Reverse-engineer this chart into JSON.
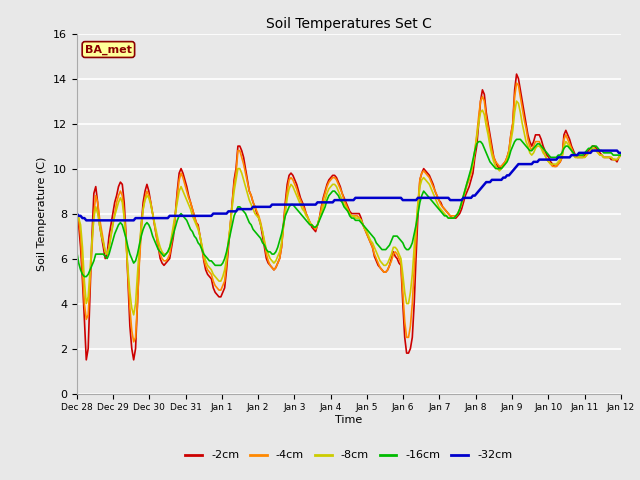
{
  "title": "Soil Temperatures Set C",
  "xlabel": "Time",
  "ylabel": "Soil Temperature (C)",
  "ylim": [
    0,
    16
  ],
  "yticks": [
    0,
    2,
    4,
    6,
    8,
    10,
    12,
    14,
    16
  ],
  "background_color": "#e8e8e8",
  "annotation_text": "BA_met",
  "annotation_bg": "#ffff99",
  "annotation_border": "#8B0000",
  "series": {
    "-2cm": {
      "color": "#cc0000",
      "lw": 1.2
    },
    "-4cm": {
      "color": "#ff8800",
      "lw": 1.2
    },
    "-8cm": {
      "color": "#cccc00",
      "lw": 1.2
    },
    "-16cm": {
      "color": "#00bb00",
      "lw": 1.2
    },
    "-32cm": {
      "color": "#0000cc",
      "lw": 1.8
    }
  },
  "x_labels": [
    "Dec 28",
    "Dec 29",
    "Dec 30",
    "Dec 31",
    "Jan 1",
    "Jan 2",
    "Jan 3",
    "Jan 4",
    "Jan 5",
    "Jan 6",
    "Jan 7",
    "Jan 8",
    "Jan 9",
    "Jan 10",
    "Jan 11",
    "Jan 12"
  ],
  "data": {
    "-2cm": [
      8.0,
      7.5,
      6.5,
      5.0,
      3.3,
      1.5,
      2.0,
      4.5,
      7.0,
      8.9,
      9.2,
      8.5,
      7.5,
      7.0,
      6.5,
      6.0,
      6.2,
      7.0,
      7.5,
      8.0,
      8.5,
      8.8,
      9.2,
      9.4,
      9.3,
      8.5,
      7.0,
      5.0,
      3.0,
      2.0,
      1.5,
      2.0,
      4.0,
      6.0,
      7.5,
      8.5,
      9.0,
      9.3,
      9.0,
      8.5,
      8.0,
      7.5,
      7.0,
      6.5,
      6.0,
      5.8,
      5.7,
      5.8,
      5.9,
      6.0,
      6.5,
      7.0,
      8.0,
      9.0,
      9.8,
      10.0,
      9.8,
      9.5,
      9.2,
      8.8,
      8.5,
      8.2,
      7.9,
      7.6,
      7.5,
      7.0,
      6.5,
      5.9,
      5.5,
      5.3,
      5.2,
      5.1,
      4.7,
      4.5,
      4.4,
      4.3,
      4.3,
      4.5,
      4.7,
      5.5,
      6.5,
      7.5,
      8.5,
      9.5,
      10.0,
      11.0,
      11.0,
      10.8,
      10.5,
      10.0,
      9.5,
      9.0,
      8.8,
      8.5,
      8.3,
      8.0,
      7.8,
      7.5,
      7.0,
      6.5,
      6.0,
      5.8,
      5.7,
      5.6,
      5.5,
      5.6,
      5.8,
      6.0,
      6.5,
      7.5,
      8.5,
      9.3,
      9.7,
      9.8,
      9.7,
      9.5,
      9.3,
      9.0,
      8.7,
      8.5,
      8.3,
      8.0,
      7.8,
      7.6,
      7.4,
      7.3,
      7.2,
      7.5,
      7.8,
      8.3,
      8.7,
      9.0,
      9.3,
      9.5,
      9.6,
      9.7,
      9.7,
      9.6,
      9.4,
      9.2,
      8.9,
      8.7,
      8.5,
      8.3,
      8.1,
      8.0,
      8.0,
      8.0,
      8.0,
      8.0,
      7.8,
      7.5,
      7.3,
      7.1,
      6.9,
      6.7,
      6.5,
      6.1,
      5.9,
      5.7,
      5.6,
      5.5,
      5.4,
      5.4,
      5.5,
      5.7,
      6.0,
      6.3,
      6.1,
      6.0,
      5.8,
      5.7,
      4.0,
      2.5,
      1.8,
      1.8,
      2.0,
      2.5,
      4.0,
      6.1,
      8.0,
      9.5,
      9.8,
      10.0,
      9.9,
      9.8,
      9.7,
      9.5,
      9.3,
      9.0,
      8.8,
      8.6,
      8.5,
      8.3,
      8.2,
      8.1,
      8.0,
      7.9,
      7.8,
      7.8,
      7.8,
      7.9,
      8.0,
      8.2,
      8.5,
      8.8,
      9.0,
      9.2,
      9.5,
      9.8,
      10.5,
      11.0,
      12.0,
      13.0,
      13.5,
      13.3,
      12.5,
      12.0,
      11.5,
      11.0,
      10.5,
      10.3,
      10.1,
      10.0,
      10.1,
      10.2,
      10.3,
      10.5,
      10.8,
      11.5,
      12.0,
      13.5,
      14.2,
      14.0,
      13.5,
      13.0,
      12.5,
      12.0,
      11.5,
      11.2,
      11.0,
      11.2,
      11.5,
      11.5,
      11.5,
      11.3,
      11.0,
      10.8,
      10.6,
      10.5,
      10.3,
      10.2,
      10.1,
      10.1,
      10.2,
      10.3,
      10.5,
      11.5,
      11.7,
      11.5,
      11.3,
      11.0,
      10.8,
      10.6,
      10.5,
      10.5,
      10.5,
      10.5,
      10.6,
      10.7,
      10.8,
      10.9,
      11.0,
      11.0,
      10.9,
      10.8,
      10.7,
      10.6,
      10.5,
      10.5,
      10.5,
      10.5,
      10.4,
      10.4,
      10.4,
      10.3,
      10.5,
      10.6
    ],
    "-4cm": [
      8.0,
      7.8,
      7.0,
      5.5,
      4.0,
      3.3,
      3.5,
      5.0,
      6.5,
      8.0,
      8.8,
      8.5,
      7.8,
      7.3,
      6.8,
      6.3,
      6.2,
      6.5,
      7.0,
      7.5,
      8.0,
      8.5,
      8.8,
      9.0,
      8.8,
      8.0,
      6.8,
      5.2,
      3.8,
      2.8,
      2.3,
      2.5,
      4.0,
      5.8,
      7.2,
      8.2,
      8.7,
      9.0,
      8.8,
      8.5,
      8.0,
      7.5,
      7.0,
      6.5,
      6.2,
      6.0,
      5.9,
      5.9,
      6.0,
      6.2,
      6.7,
      7.2,
      8.0,
      8.8,
      9.5,
      9.8,
      9.6,
      9.3,
      9.0,
      8.7,
      8.5,
      8.2,
      7.9,
      7.6,
      7.4,
      7.0,
      6.5,
      6.0,
      5.7,
      5.5,
      5.4,
      5.3,
      5.0,
      4.8,
      4.7,
      4.6,
      4.6,
      4.8,
      5.0,
      5.8,
      6.7,
      7.5,
      8.5,
      9.3,
      9.8,
      10.8,
      10.8,
      10.5,
      10.2,
      9.8,
      9.4,
      9.0,
      8.8,
      8.5,
      8.3,
      8.1,
      7.9,
      7.6,
      7.2,
      6.7,
      6.2,
      5.9,
      5.7,
      5.6,
      5.5,
      5.6,
      5.8,
      6.0,
      6.5,
      7.4,
      8.3,
      9.0,
      9.5,
      9.6,
      9.5,
      9.3,
      9.1,
      8.8,
      8.6,
      8.4,
      8.2,
      8.0,
      7.8,
      7.6,
      7.5,
      7.4,
      7.3,
      7.5,
      7.8,
      8.2,
      8.6,
      8.9,
      9.2,
      9.4,
      9.5,
      9.6,
      9.6,
      9.5,
      9.3,
      9.1,
      8.9,
      8.6,
      8.4,
      8.2,
      8.0,
      7.9,
      7.9,
      7.9,
      7.9,
      7.8,
      7.7,
      7.5,
      7.3,
      7.1,
      6.9,
      6.7,
      6.5,
      6.2,
      6.0,
      5.8,
      5.6,
      5.5,
      5.4,
      5.4,
      5.5,
      5.7,
      5.9,
      6.2,
      6.3,
      6.2,
      6.0,
      5.8,
      4.5,
      3.2,
      2.5,
      2.5,
      3.0,
      4.0,
      5.5,
      7.0,
      8.5,
      9.5,
      9.8,
      9.9,
      9.8,
      9.7,
      9.6,
      9.4,
      9.2,
      9.0,
      8.8,
      8.6,
      8.4,
      8.3,
      8.2,
      8.1,
      8.0,
      7.9,
      7.9,
      7.9,
      7.9,
      8.0,
      8.2,
      8.4,
      8.7,
      9.0,
      9.3,
      9.5,
      9.8,
      10.2,
      10.8,
      11.5,
      12.3,
      13.0,
      13.2,
      13.0,
      12.3,
      11.8,
      11.3,
      10.8,
      10.5,
      10.3,
      10.2,
      10.1,
      10.1,
      10.2,
      10.3,
      10.5,
      10.8,
      11.5,
      12.0,
      13.2,
      13.8,
      13.7,
      13.2,
      12.7,
      12.2,
      11.8,
      11.3,
      11.0,
      10.8,
      11.0,
      11.2,
      11.2,
      11.2,
      11.0,
      10.8,
      10.6,
      10.4,
      10.3,
      10.2,
      10.1,
      10.1,
      10.1,
      10.2,
      10.3,
      10.5,
      11.3,
      11.5,
      11.3,
      11.1,
      10.9,
      10.7,
      10.5,
      10.5,
      10.5,
      10.5,
      10.5,
      10.5,
      10.6,
      10.7,
      10.8,
      10.9,
      10.9,
      10.8,
      10.7,
      10.6,
      10.6,
      10.5,
      10.5,
      10.5,
      10.5,
      10.5,
      10.4,
      10.4,
      10.4,
      10.5,
      10.6
    ],
    "-8cm": [
      8.0,
      7.8,
      7.5,
      6.5,
      5.0,
      4.0,
      4.3,
      5.5,
      6.8,
      7.8,
      8.3,
      8.0,
      7.5,
      7.0,
      6.7,
      6.3,
      6.2,
      6.5,
      7.0,
      7.5,
      7.9,
      8.2,
      8.5,
      8.7,
      8.5,
      7.8,
      6.8,
      5.5,
      4.5,
      3.8,
      3.5,
      4.0,
      5.3,
      6.5,
      7.5,
      8.2,
      8.6,
      8.8,
      8.7,
      8.4,
      8.0,
      7.6,
      7.2,
      6.8,
      6.5,
      6.3,
      6.2,
      6.2,
      6.3,
      6.5,
      7.0,
      7.5,
      8.0,
      8.5,
      9.0,
      9.2,
      9.0,
      8.8,
      8.6,
      8.4,
      8.2,
      7.9,
      7.7,
      7.5,
      7.3,
      7.0,
      6.6,
      6.2,
      5.9,
      5.7,
      5.6,
      5.5,
      5.3,
      5.2,
      5.1,
      5.0,
      5.0,
      5.2,
      5.5,
      6.0,
      6.8,
      7.5,
      8.3,
      9.0,
      9.5,
      10.0,
      10.0,
      9.8,
      9.5,
      9.2,
      8.9,
      8.6,
      8.4,
      8.2,
      8.0,
      7.9,
      7.8,
      7.5,
      7.2,
      6.8,
      6.4,
      6.2,
      6.0,
      5.9,
      5.8,
      5.9,
      6.1,
      6.3,
      6.7,
      7.4,
      8.0,
      8.7,
      9.1,
      9.3,
      9.2,
      9.0,
      8.8,
      8.6,
      8.4,
      8.2,
      8.1,
      7.9,
      7.8,
      7.6,
      7.5,
      7.4,
      7.4,
      7.5,
      7.8,
      8.0,
      8.3,
      8.6,
      8.9,
      9.1,
      9.2,
      9.3,
      9.3,
      9.2,
      9.0,
      8.8,
      8.6,
      8.4,
      8.3,
      8.1,
      8.0,
      7.9,
      7.9,
      7.8,
      7.8,
      7.8,
      7.7,
      7.5,
      7.3,
      7.2,
      7.0,
      6.8,
      6.7,
      6.5,
      6.3,
      6.1,
      5.9,
      5.8,
      5.7,
      5.7,
      5.8,
      6.0,
      6.2,
      6.5,
      6.5,
      6.4,
      6.2,
      6.0,
      5.3,
      4.5,
      4.0,
      4.0,
      4.5,
      5.3,
      6.5,
      7.5,
      8.5,
      9.2,
      9.5,
      9.6,
      9.5,
      9.4,
      9.3,
      9.1,
      8.9,
      8.7,
      8.5,
      8.3,
      8.2,
      8.1,
      8.0,
      7.9,
      7.8,
      7.8,
      7.8,
      7.8,
      7.9,
      8.0,
      8.2,
      8.5,
      8.8,
      9.1,
      9.4,
      9.6,
      9.9,
      10.2,
      10.8,
      11.4,
      12.0,
      12.5,
      12.6,
      12.4,
      11.9,
      11.5,
      11.0,
      10.6,
      10.3,
      10.1,
      10.0,
      9.9,
      10.0,
      10.1,
      10.2,
      10.4,
      10.7,
      11.2,
      11.7,
      12.5,
      13.0,
      12.9,
      12.5,
      12.0,
      11.6,
      11.2,
      11.0,
      10.7,
      10.6,
      10.7,
      10.9,
      11.0,
      11.0,
      10.9,
      10.7,
      10.6,
      10.4,
      10.3,
      10.2,
      10.2,
      10.2,
      10.2,
      10.3,
      10.4,
      10.5,
      11.0,
      11.2,
      11.1,
      11.0,
      10.8,
      10.6,
      10.5,
      10.5,
      10.5,
      10.5,
      10.5,
      10.5,
      10.6,
      10.7,
      10.8,
      10.9,
      10.9,
      10.8,
      10.7,
      10.6,
      10.6,
      10.5,
      10.5,
      10.5,
      10.5,
      10.5,
      10.4,
      10.4,
      10.4,
      10.5,
      10.6
    ],
    "-16cm": [
      6.3,
      5.8,
      5.5,
      5.3,
      5.2,
      5.2,
      5.3,
      5.5,
      5.7,
      5.9,
      6.2,
      6.2,
      6.2,
      6.2,
      6.2,
      6.1,
      6.0,
      6.2,
      6.5,
      6.8,
      7.1,
      7.3,
      7.5,
      7.6,
      7.5,
      7.2,
      6.9,
      6.5,
      6.2,
      6.0,
      5.8,
      5.9,
      6.2,
      6.6,
      7.0,
      7.3,
      7.5,
      7.6,
      7.5,
      7.3,
      7.0,
      6.8,
      6.6,
      6.4,
      6.3,
      6.2,
      6.1,
      6.2,
      6.3,
      6.5,
      6.8,
      7.1,
      7.4,
      7.7,
      7.9,
      8.0,
      7.9,
      7.8,
      7.7,
      7.5,
      7.3,
      7.2,
      7.0,
      6.9,
      6.7,
      6.6,
      6.4,
      6.2,
      6.1,
      6.0,
      5.9,
      5.9,
      5.8,
      5.7,
      5.7,
      5.7,
      5.7,
      5.8,
      6.0,
      6.3,
      6.7,
      7.1,
      7.5,
      7.9,
      8.1,
      8.3,
      8.3,
      8.2,
      8.1,
      8.0,
      7.8,
      7.6,
      7.5,
      7.3,
      7.2,
      7.1,
      7.0,
      6.9,
      6.7,
      6.6,
      6.4,
      6.3,
      6.3,
      6.2,
      6.2,
      6.3,
      6.5,
      6.8,
      7.1,
      7.5,
      7.9,
      8.1,
      8.3,
      8.4,
      8.4,
      8.3,
      8.2,
      8.1,
      8.0,
      7.9,
      7.8,
      7.7,
      7.6,
      7.5,
      7.5,
      7.4,
      7.4,
      7.5,
      7.7,
      7.9,
      8.1,
      8.3,
      8.6,
      8.8,
      8.9,
      9.0,
      9.0,
      8.9,
      8.8,
      8.6,
      8.5,
      8.3,
      8.2,
      8.1,
      7.9,
      7.8,
      7.8,
      7.7,
      7.7,
      7.7,
      7.6,
      7.5,
      7.4,
      7.3,
      7.2,
      7.1,
      7.0,
      6.9,
      6.7,
      6.6,
      6.5,
      6.4,
      6.4,
      6.4,
      6.5,
      6.6,
      6.8,
      7.0,
      7.0,
      7.0,
      6.9,
      6.8,
      6.7,
      6.5,
      6.4,
      6.4,
      6.5,
      6.7,
      7.1,
      7.5,
      8.0,
      8.5,
      8.8,
      9.0,
      8.9,
      8.8,
      8.7,
      8.6,
      8.5,
      8.4,
      8.3,
      8.2,
      8.1,
      8.0,
      7.9,
      7.9,
      7.8,
      7.8,
      7.8,
      7.8,
      7.9,
      8.0,
      8.2,
      8.5,
      8.8,
      9.1,
      9.4,
      9.7,
      10.0,
      10.4,
      10.8,
      11.1,
      11.2,
      11.2,
      11.1,
      10.9,
      10.7,
      10.5,
      10.3,
      10.2,
      10.1,
      10.0,
      10.0,
      10.0,
      10.0,
      10.1,
      10.2,
      10.3,
      10.5,
      10.8,
      11.0,
      11.2,
      11.3,
      11.3,
      11.3,
      11.2,
      11.1,
      11.0,
      10.9,
      10.8,
      10.8,
      10.9,
      11.0,
      11.1,
      11.1,
      11.0,
      10.9,
      10.8,
      10.7,
      10.6,
      10.5,
      10.5,
      10.5,
      10.5,
      10.6,
      10.6,
      10.7,
      10.9,
      11.0,
      11.0,
      10.9,
      10.8,
      10.7,
      10.6,
      10.6,
      10.6,
      10.6,
      10.6,
      10.7,
      10.8,
      10.9,
      10.9,
      11.0,
      11.0,
      11.0,
      10.9,
      10.8,
      10.8,
      10.7,
      10.7,
      10.7,
      10.7,
      10.7,
      10.6,
      10.6,
      10.6,
      10.6,
      10.6
    ],
    "-32cm": [
      8.0,
      7.9,
      7.9,
      7.8,
      7.8,
      7.7,
      7.7,
      7.7,
      7.7,
      7.7,
      7.7,
      7.7,
      7.7,
      7.7,
      7.7,
      7.7,
      7.7,
      7.7,
      7.7,
      7.7,
      7.7,
      7.7,
      7.7,
      7.7,
      7.7,
      7.7,
      7.7,
      7.7,
      7.7,
      7.7,
      7.7,
      7.8,
      7.8,
      7.8,
      7.8,
      7.8,
      7.8,
      7.8,
      7.8,
      7.8,
      7.8,
      7.8,
      7.8,
      7.8,
      7.8,
      7.8,
      7.8,
      7.8,
      7.8,
      7.9,
      7.9,
      7.9,
      7.9,
      7.9,
      7.9,
      7.9,
      7.9,
      7.9,
      7.9,
      7.9,
      7.9,
      7.9,
      7.9,
      7.9,
      7.9,
      7.9,
      7.9,
      7.9,
      7.9,
      7.9,
      7.9,
      7.9,
      8.0,
      8.0,
      8.0,
      8.0,
      8.0,
      8.0,
      8.0,
      8.0,
      8.1,
      8.1,
      8.1,
      8.1,
      8.1,
      8.2,
      8.2,
      8.2,
      8.2,
      8.2,
      8.2,
      8.2,
      8.2,
      8.3,
      8.3,
      8.3,
      8.3,
      8.3,
      8.3,
      8.3,
      8.3,
      8.3,
      8.3,
      8.4,
      8.4,
      8.4,
      8.4,
      8.4,
      8.4,
      8.4,
      8.4,
      8.4,
      8.4,
      8.4,
      8.4,
      8.4,
      8.4,
      8.4,
      8.4,
      8.4,
      8.4,
      8.4,
      8.4,
      8.4,
      8.4,
      8.4,
      8.4,
      8.5,
      8.5,
      8.5,
      8.5,
      8.5,
      8.5,
      8.5,
      8.5,
      8.5,
      8.6,
      8.6,
      8.6,
      8.6,
      8.6,
      8.6,
      8.6,
      8.6,
      8.6,
      8.6,
      8.6,
      8.7,
      8.7,
      8.7,
      8.7,
      8.7,
      8.7,
      8.7,
      8.7,
      8.7,
      8.7,
      8.7,
      8.7,
      8.7,
      8.7,
      8.7,
      8.7,
      8.7,
      8.7,
      8.7,
      8.7,
      8.7,
      8.7,
      8.7,
      8.7,
      8.7,
      8.6,
      8.6,
      8.6,
      8.6,
      8.6,
      8.6,
      8.6,
      8.6,
      8.7,
      8.7,
      8.7,
      8.7,
      8.7,
      8.7,
      8.7,
      8.7,
      8.7,
      8.7,
      8.7,
      8.7,
      8.7,
      8.7,
      8.7,
      8.7,
      8.7,
      8.6,
      8.6,
      8.6,
      8.6,
      8.6,
      8.6,
      8.6,
      8.7,
      8.7,
      8.7,
      8.7,
      8.7,
      8.8,
      8.8,
      8.9,
      9.0,
      9.1,
      9.2,
      9.3,
      9.4,
      9.4,
      9.4,
      9.5,
      9.5,
      9.5,
      9.5,
      9.5,
      9.5,
      9.6,
      9.6,
      9.7,
      9.7,
      9.8,
      9.9,
      10.0,
      10.1,
      10.2,
      10.2,
      10.2,
      10.2,
      10.2,
      10.2,
      10.2,
      10.2,
      10.3,
      10.3,
      10.3,
      10.4,
      10.4,
      10.4,
      10.4,
      10.4,
      10.4,
      10.4,
      10.4,
      10.4,
      10.4,
      10.5,
      10.5,
      10.5,
      10.5,
      10.5,
      10.5,
      10.5,
      10.6,
      10.6,
      10.6,
      10.6,
      10.7,
      10.7,
      10.7,
      10.7,
      10.7,
      10.7,
      10.7,
      10.8,
      10.8,
      10.8,
      10.8,
      10.8,
      10.8,
      10.8,
      10.8,
      10.8,
      10.8,
      10.8,
      10.8,
      10.8,
      10.8,
      10.7,
      10.7
    ]
  }
}
